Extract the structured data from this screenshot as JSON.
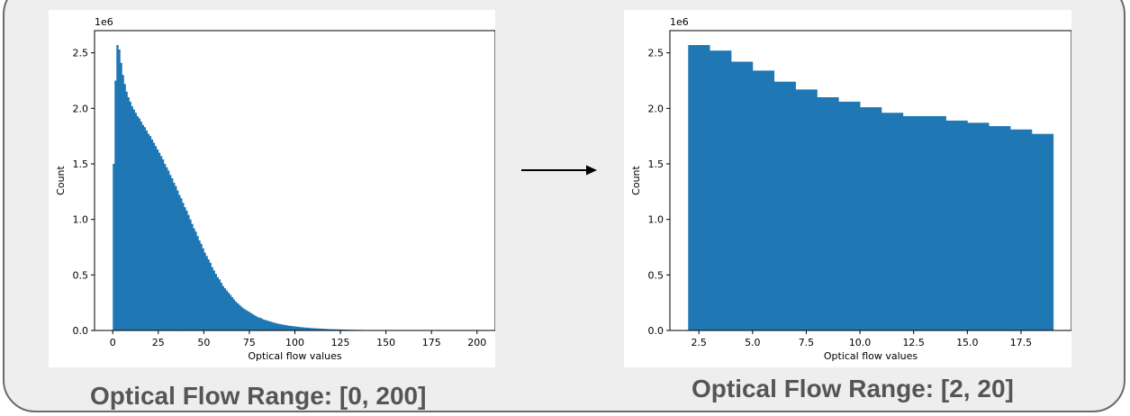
{
  "captions": {
    "left": "Optical Flow Range: [0, 200]",
    "right": "Optical Flow Range: [2, 20]"
  },
  "colors": {
    "bar": "#1f77b4",
    "frame_bg": "#eeeeee",
    "caption": "#555555"
  },
  "icons": {
    "arrow": "right-arrow-icon"
  },
  "chart_data": [
    {
      "type": "bar",
      "title": "",
      "xlabel": "Optical flow values",
      "ylabel": "Count",
      "y_offset_text": "1e6",
      "xlim": [
        -10,
        210
      ],
      "ylim": [
        0,
        2.7
      ],
      "xticks": [
        0,
        25,
        50,
        75,
        100,
        125,
        150,
        175,
        200
      ],
      "yticks": [
        0.0,
        0.5,
        1.0,
        1.5,
        2.0,
        2.5
      ],
      "ytick_labels": [
        "0.0",
        "0.5",
        "1.0",
        "1.5",
        "2.0",
        "2.5"
      ],
      "grid": false,
      "bin_start": 0,
      "bin_width": 1,
      "values": [
        1.5,
        2.25,
        2.57,
        2.53,
        2.41,
        2.3,
        2.22,
        2.15,
        2.1,
        2.06,
        2.02,
        1.99,
        1.96,
        1.93,
        1.91,
        1.88,
        1.85,
        1.83,
        1.8,
        1.77,
        1.75,
        1.72,
        1.69,
        1.66,
        1.63,
        1.6,
        1.57,
        1.54,
        1.5,
        1.47,
        1.44,
        1.4,
        1.37,
        1.33,
        1.3,
        1.26,
        1.22,
        1.19,
        1.15,
        1.11,
        1.08,
        1.04,
        1.0,
        0.96,
        0.92,
        0.89,
        0.85,
        0.81,
        0.78,
        0.74,
        0.7,
        0.67,
        0.64,
        0.61,
        0.57,
        0.54,
        0.51,
        0.48,
        0.46,
        0.43,
        0.4,
        0.38,
        0.36,
        0.34,
        0.32,
        0.3,
        0.28,
        0.26,
        0.245,
        0.23,
        0.215,
        0.2,
        0.19,
        0.18,
        0.17,
        0.16,
        0.15,
        0.14,
        0.13,
        0.12,
        0.115,
        0.11,
        0.1,
        0.095,
        0.09,
        0.085,
        0.08,
        0.075,
        0.07,
        0.066,
        0.062,
        0.058,
        0.055,
        0.052,
        0.049,
        0.046,
        0.043,
        0.041,
        0.039,
        0.037,
        0.035,
        0.033,
        0.031,
        0.029,
        0.028,
        0.026,
        0.025,
        0.024,
        0.022,
        0.021,
        0.02,
        0.019,
        0.018,
        0.017,
        0.016,
        0.015,
        0.014,
        0.013,
        0.012,
        0.012,
        0.011,
        0.011,
        0.01,
        0.01,
        0.009,
        0.009,
        0.008,
        0.008,
        0.0075,
        0.007,
        0.0066,
        0.0062,
        0.0058,
        0.0055,
        0.0052,
        0.0049,
        0.0046,
        0.0043,
        0.0041,
        0.0039,
        0.0037,
        0.0035,
        0.0033,
        0.0031,
        0.003,
        0.0028,
        0.0027,
        0.0025,
        0.0024,
        0.0023,
        0.0022,
        0.0021,
        0.002,
        0.0019,
        0.0018,
        0.0017,
        0.0016,
        0.0016,
        0.0015,
        0.0015,
        0.0014,
        0.0014,
        0.0013,
        0.0013,
        0.0012,
        0.0012,
        0.0011,
        0.0011,
        0.001,
        0.001,
        0.001,
        0.0009,
        0.0009,
        0.0009,
        0.0008,
        0.0008,
        0.0008,
        0.0008,
        0.0007,
        0.0007,
        0.0007,
        0.0007,
        0.0006,
        0.0006,
        0.0006,
        0.0006,
        0.0005,
        0.0005,
        0.0005,
        0.0005,
        0.0005,
        0.0004,
        0.0004,
        0.0004,
        0.0004,
        0.0004,
        0.0004,
        0.0003,
        0.0003,
        0.0003
      ]
    },
    {
      "type": "bar",
      "title": "",
      "xlabel": "Optical flow values",
      "ylabel": "Count",
      "y_offset_text": "1e6",
      "xlim": [
        1.15,
        19.85
      ],
      "ylim": [
        0,
        2.7
      ],
      "xticks": [
        2.5,
        5.0,
        7.5,
        10.0,
        12.5,
        15.0,
        17.5
      ],
      "xtick_labels": [
        "2.5",
        "5.0",
        "7.5",
        "10.0",
        "12.5",
        "15.0",
        "17.5"
      ],
      "yticks": [
        0.0,
        0.5,
        1.0,
        1.5,
        2.0,
        2.5
      ],
      "ytick_labels": [
        "0.0",
        "0.5",
        "1.0",
        "1.5",
        "2.0",
        "2.5"
      ],
      "grid": false,
      "bin_start": 2,
      "bin_width": 1,
      "values": [
        2.57,
        2.52,
        2.42,
        2.34,
        2.24,
        2.17,
        2.1,
        2.06,
        2.01,
        1.96,
        1.93,
        1.93,
        1.89,
        1.87,
        1.84,
        1.81,
        1.77
      ]
    }
  ]
}
